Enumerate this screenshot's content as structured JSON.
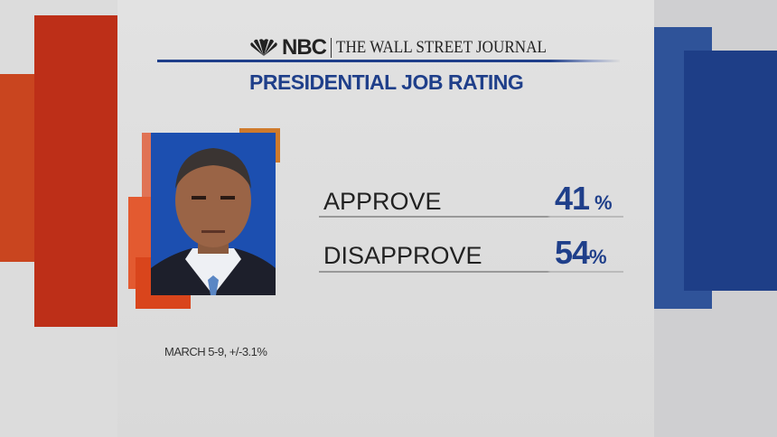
{
  "header": {
    "network": "NBC",
    "partner": "THE WALL STREET JOURNAL",
    "title": "PRESIDENTIAL JOB RATING"
  },
  "chart_data": {
    "type": "table",
    "title": "PRESIDENTIAL JOB RATING",
    "categories": [
      "APPROVE",
      "DISAPPROVE"
    ],
    "values": [
      41,
      54
    ],
    "unit": "%"
  },
  "rows": [
    {
      "label": "APPROVE",
      "value": "41",
      "unit": "%"
    },
    {
      "label": "DISAPPROVE",
      "value": "54",
      "unit": "%"
    }
  ],
  "footnote": "MARCH 5-9, +/-3.1%",
  "colors": {
    "brand_blue": "#1f3f8a",
    "accent_red": "#bd2f18"
  }
}
